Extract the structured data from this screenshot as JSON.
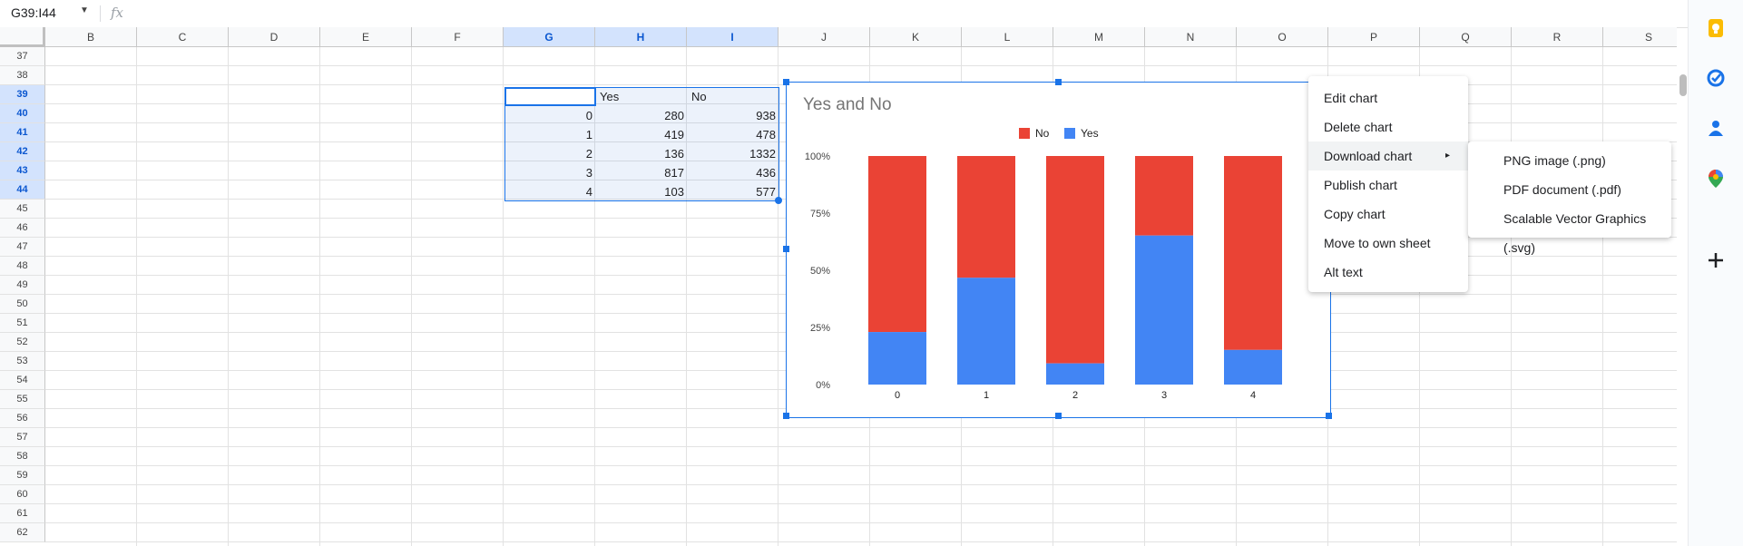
{
  "name_box": "G39:I44",
  "formula_label": "fx",
  "columns": [
    "B",
    "C",
    "D",
    "E",
    "F",
    "G",
    "H",
    "I",
    "J",
    "K",
    "L",
    "M",
    "N",
    "O",
    "P",
    "Q",
    "R",
    "S"
  ],
  "rows": [
    "37",
    "38",
    "39",
    "40",
    "41",
    "42",
    "43",
    "44",
    "45",
    "46",
    "47",
    "48",
    "49",
    "50",
    "51",
    "52",
    "53",
    "54",
    "55",
    "56",
    "57",
    "58",
    "59",
    "60",
    "61",
    "62"
  ],
  "selected_columns": [
    "G",
    "H",
    "I"
  ],
  "selected_rows": [
    "39",
    "40",
    "41",
    "42",
    "43",
    "44"
  ],
  "table": {
    "headers": [
      "",
      "Yes",
      "No"
    ],
    "rows": [
      [
        "0",
        "280",
        "938"
      ],
      [
        "1",
        "419",
        "478"
      ],
      [
        "2",
        "136",
        "1332"
      ],
      [
        "3",
        "817",
        "436"
      ],
      [
        "4",
        "103",
        "577"
      ]
    ]
  },
  "chart": {
    "title": "Yes and No",
    "menu_icon": "more-vert-icon",
    "legend": [
      {
        "label": "No",
        "color": "#ea4335"
      },
      {
        "label": "Yes",
        "color": "#4285f4"
      }
    ]
  },
  "chart_data": {
    "type": "bar",
    "stacked": "100%",
    "title": "Yes and No",
    "categories": [
      "0",
      "1",
      "2",
      "3",
      "4"
    ],
    "series": [
      {
        "name": "Yes",
        "values": [
          280,
          419,
          136,
          817,
          103
        ],
        "color": "#4285f4"
      },
      {
        "name": "No",
        "values": [
          938,
          478,
          1332,
          436,
          577
        ],
        "color": "#ea4335"
      }
    ],
    "y_ticks": [
      "0%",
      "25%",
      "50%",
      "75%",
      "100%"
    ],
    "legend_position": "top",
    "grid": false
  },
  "context_menu": {
    "items": [
      "Edit chart",
      "Delete chart",
      "Download chart",
      "Publish chart",
      "Copy chart",
      "Move to own sheet",
      "Alt text"
    ],
    "submenu_arrow": "▸"
  },
  "download_submenu": {
    "items": [
      "PNG image (.png)",
      "PDF document (.pdf)",
      "Scalable Vector Graphics (.svg)"
    ]
  },
  "side_panel": {
    "icons": [
      "keep-icon",
      "tasks-icon",
      "contacts-icon",
      "maps-icon",
      "add-icon"
    ],
    "colors": {
      "keep": "#fbbc04",
      "tasks": "#1a73e8",
      "contacts": "#1a73e8",
      "add": "#202124"
    }
  }
}
